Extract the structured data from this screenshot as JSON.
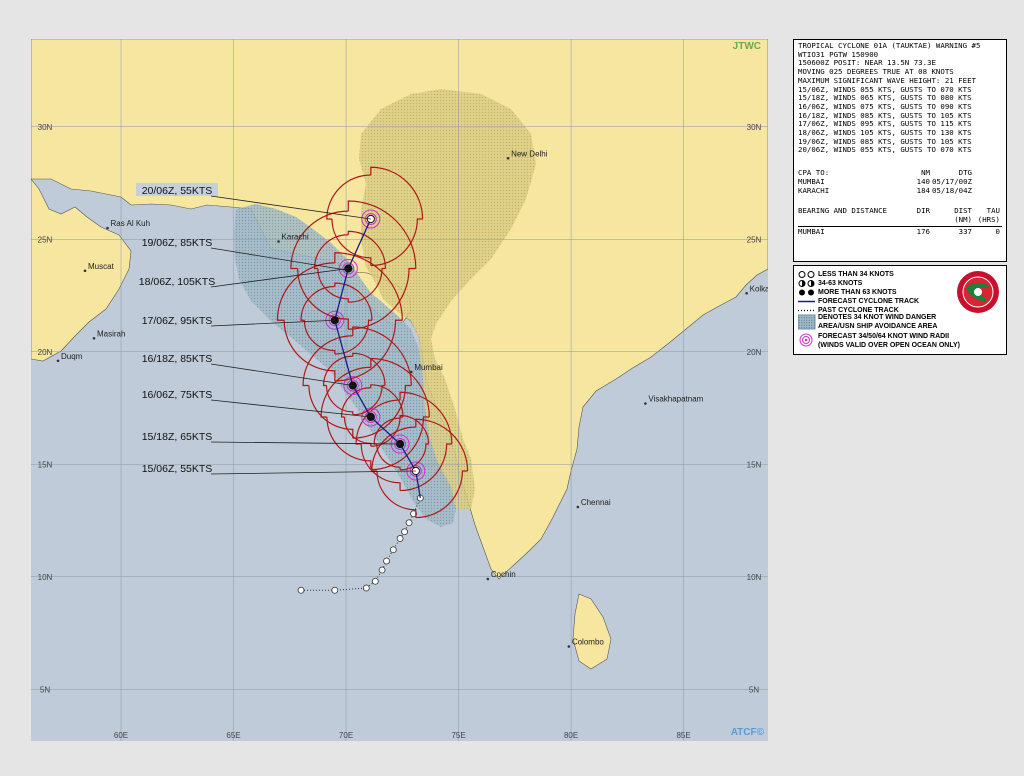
{
  "map": {
    "agency_top": "JTWC",
    "agency_bottom": "ATCF©",
    "lat_labels": [
      "30N",
      "25N",
      "20N",
      "15N",
      "10N",
      "5N"
    ],
    "lon_labels": [
      "60E",
      "65E",
      "70E",
      "75E",
      "80E",
      "85E"
    ],
    "places": [
      {
        "name": "Ras Al Kuh",
        "lon": 59.4,
        "lat": 25.5
      },
      {
        "name": "Muscat",
        "lon": 58.4,
        "lat": 23.6
      },
      {
        "name": "Masirah",
        "lon": 58.8,
        "lat": 20.6
      },
      {
        "name": "Duqm",
        "lon": 57.2,
        "lat": 19.6
      },
      {
        "name": "Karachi",
        "lon": 67.0,
        "lat": 24.9
      },
      {
        "name": "New Delhi",
        "lon": 77.2,
        "lat": 28.6
      },
      {
        "name": "Kolka",
        "lon": 87.8,
        "lat": 22.6
      },
      {
        "name": "Mumbai",
        "lon": 72.9,
        "lat": 19.1
      },
      {
        "name": "Visakhapatnam",
        "lon": 83.3,
        "lat": 17.7
      },
      {
        "name": "Chennai",
        "lon": 80.3,
        "lat": 13.1
      },
      {
        "name": "Cochin",
        "lon": 76.3,
        "lat": 9.9
      },
      {
        "name": "Colombo",
        "lon": 79.9,
        "lat": 6.9
      }
    ],
    "forecast_points": [
      {
        "label": "15/06Z,  55KTS",
        "lon": 73.1,
        "lat": 14.7,
        "intensity": 55
      },
      {
        "label": "15/18Z,  65KTS",
        "lon": 72.4,
        "lat": 15.9,
        "intensity": 65
      },
      {
        "label": "16/06Z,  75KTS",
        "lon": 71.1,
        "lat": 17.1,
        "intensity": 75
      },
      {
        "label": "16/18Z,  85KTS",
        "lon": 70.3,
        "lat": 18.5,
        "intensity": 85
      },
      {
        "label": "17/06Z,  95KTS",
        "lon": 69.5,
        "lat": 21.4,
        "intensity": 95
      },
      {
        "label": "18/06Z, 105KTS",
        "lon": 70.1,
        "lat": 23.7,
        "intensity": 105
      },
      {
        "label": "19/06Z,  85KTS",
        "lon": 70.2,
        "lat": 23.6,
        "intensity": 85
      },
      {
        "label": "20/06Z,  55KTS",
        "lon": 71.1,
        "lat": 25.9,
        "intensity": 55
      }
    ],
    "past_track": [
      {
        "lon": 68.0,
        "lat": 9.4
      },
      {
        "lon": 69.5,
        "lat": 9.4
      },
      {
        "lon": 70.9,
        "lat": 9.5
      },
      {
        "lon": 71.3,
        "lat": 9.8
      },
      {
        "lon": 71.6,
        "lat": 10.3
      },
      {
        "lon": 71.8,
        "lat": 10.7
      },
      {
        "lon": 72.1,
        "lat": 11.2
      },
      {
        "lon": 72.4,
        "lat": 11.7
      },
      {
        "lon": 72.6,
        "lat": 12.0
      },
      {
        "lon": 72.8,
        "lat": 12.4
      },
      {
        "lon": 73.0,
        "lat": 12.8
      },
      {
        "lon": 73.3,
        "lat": 13.5
      }
    ]
  },
  "warning": {
    "lines": [
      "TROPICAL CYCLONE 01A (TAUKTAE) WARNING #5",
      "WTIO31 PGTW 150900",
      "150600Z POSIT: NEAR 13.5N 73.3E",
      "MOVING 025 DEGREES TRUE AT 08 KNOTS",
      "MAXIMUM SIGNIFICANT WAVE HEIGHT: 21 FEET",
      "15/06Z, WINDS 055 KTS, GUSTS TO 070 KTS",
      "15/18Z, WINDS 065 KTS, GUSTS TO 080 KTS",
      "16/06Z, WINDS 075 KTS, GUSTS TO 090 KTS",
      "16/18Z, WINDS 085 KTS, GUSTS TO 105 KTS",
      "17/06Z, WINDS 095 KTS, GUSTS TO 115 KTS",
      "18/06Z, WINDS 105 KTS, GUSTS TO 130 KTS",
      "19/06Z, WINDS 085 KTS, GUSTS TO 105 KTS",
      "20/06Z, WINDS 055 KTS, GUSTS TO 070 KTS"
    ],
    "cpa_header": [
      "CPA TO:",
      "NM",
      "DTG",
      ""
    ],
    "cpa_rows": [
      [
        "MUMBAI",
        "140",
        "05/17/00Z",
        ""
      ],
      [
        "KARACHI",
        "184",
        "05/18/04Z",
        ""
      ]
    ],
    "bearing_header": [
      "BEARING AND DISTANCE",
      "DIR",
      "DIST",
      "TAU"
    ],
    "bearing_sub": [
      "",
      "",
      "(NM)",
      "(HRS)"
    ],
    "bearing_rows": [
      [
        "MUMBAI",
        "176",
        "337",
        "0"
      ]
    ]
  },
  "legend": {
    "items": [
      "LESS THAN 34 KNOTS",
      "34-63 KNOTS",
      "MORE THAN 63 KNOTS",
      "FORECAST CYCLONE TRACK",
      "PAST CYCLONE TRACK",
      "DENOTES 34 KNOT WIND DANGER",
      "AREA/USN SHIP AVOIDANCE AREA",
      "FORECAST 34/50/64 KNOT WIND RADII",
      "(WINDS VALID OVER OPEN OCEAN ONLY)"
    ]
  },
  "colors": {
    "ocean": "#bfcbd8",
    "land": "#f6e6a0",
    "radii": "#b01818",
    "track": "#1a1a8c",
    "label_bg": "#c5d0dc"
  }
}
